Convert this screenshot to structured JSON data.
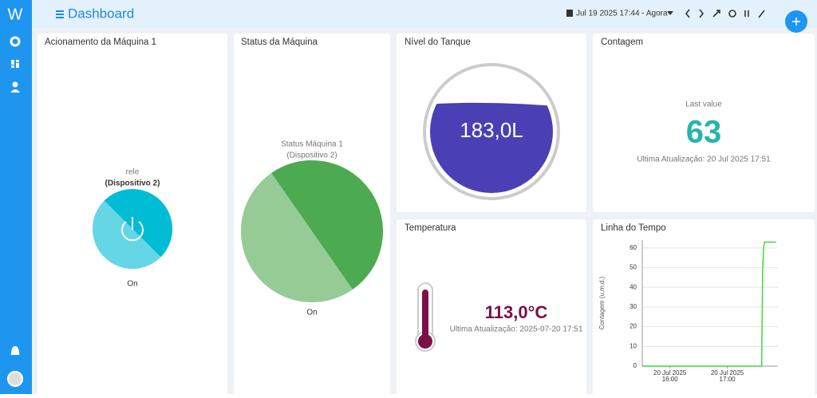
{
  "header": {
    "logo": "W",
    "title": "Dashboard",
    "time_range": "Jul 19 2025 17:44 - Agora"
  },
  "cards": [
    {
      "title": "Acionamento da Máquina 1",
      "label": "rele",
      "device": "(Dispositivo 2)",
      "state": "On"
    },
    {
      "title": "Status da Máquina",
      "label": "Status Máquina 1",
      "device": "(Dispositivo 2)",
      "state": "On"
    },
    {
      "title": "Nível do Tanque",
      "value": "183,0L"
    },
    {
      "title": "Contagem",
      "caption": "Last value",
      "value": "63",
      "updated": "Ultima Atualização: 20 Jul 2025 17:51"
    },
    {
      "title": "Temperatura",
      "value": "113,0°C",
      "updated": "Ultima Atualização: 2025-07-20 17:51"
    },
    {
      "title": "Linha do Tempo"
    }
  ],
  "timeline": {
    "type": "line",
    "y_label": "Contagem (u.m.d.)",
    "color": "#3ddc3d",
    "x": [
      "2025-07-20 15:31",
      "2025-07-20 17:36",
      "2025-07-20 17:37",
      "2025-07-20 17:38",
      "2025-07-20 17:39",
      "2025-07-20 17:51"
    ],
    "values": [
      0,
      0,
      48,
      60,
      63,
      63
    ],
    "xlim": [
      "2025-07-20 15:31",
      "2025-07-20 17:53"
    ],
    "xticks": [
      {
        "value": "2025-07-20 16:00",
        "label": [
          "20 Jul 2025",
          "16:00"
        ]
      },
      {
        "value": "2025-07-20 17:00",
        "label": [
          "20 Jul 2025",
          "17:00"
        ]
      }
    ],
    "ylim": [
      0,
      64
    ],
    "yticks": [
      0,
      10,
      20,
      30,
      40,
      50,
      60
    ],
    "grid": true
  }
}
